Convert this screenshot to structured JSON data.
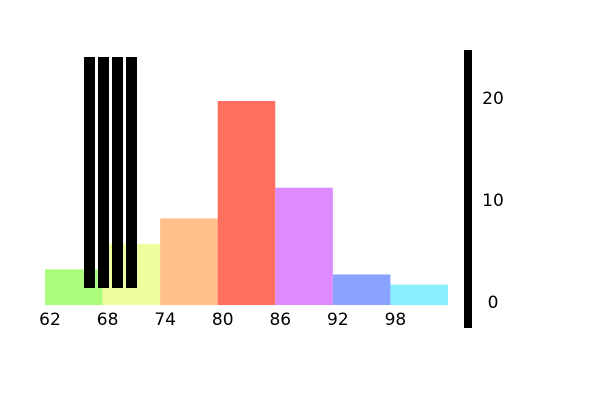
{
  "chart_data": {
    "type": "histogram",
    "bins": [
      62,
      68,
      74,
      80,
      86,
      92,
      98,
      104
    ],
    "values": [
      3.5,
      6,
      8.5,
      20,
      11.5,
      3,
      2
    ],
    "colors": [
      "#acfc7e",
      "#eeffa0",
      "#ffc089",
      "#ff6f5f",
      "#dd8bff",
      "#8aa3ff",
      "#8aeeff"
    ],
    "xlim": [
      62,
      104
    ],
    "xticks": [
      62,
      68,
      74,
      80,
      86,
      92,
      98
    ],
    "ylim": [
      -2.25,
      25
    ],
    "yticks": [
      0,
      10,
      20
    ],
    "y_axis_side": "right"
  }
}
